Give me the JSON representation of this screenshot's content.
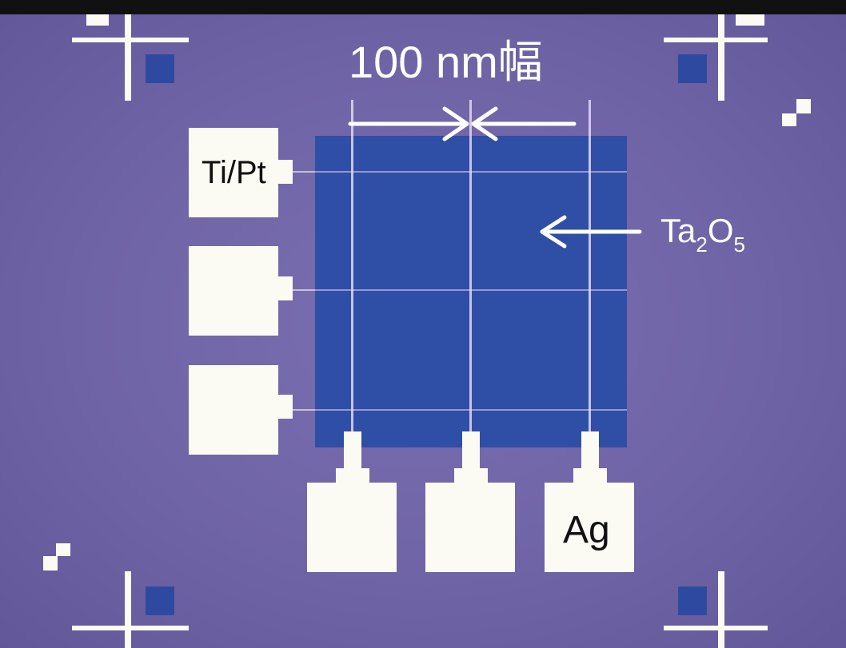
{
  "labels": {
    "width": "100 nm幅",
    "electrode_bottom": "Ti/Pt",
    "oxide_main": "Ta",
    "oxide_sub1": "2",
    "oxide_mid": "O",
    "oxide_sub2": "5",
    "electrode_top": "Ag"
  },
  "colors": {
    "substrate": "#6f64a6",
    "oxide_layer": "#2f4ea6",
    "metal": "#fbfbf4",
    "arrow": "#ffffff"
  }
}
